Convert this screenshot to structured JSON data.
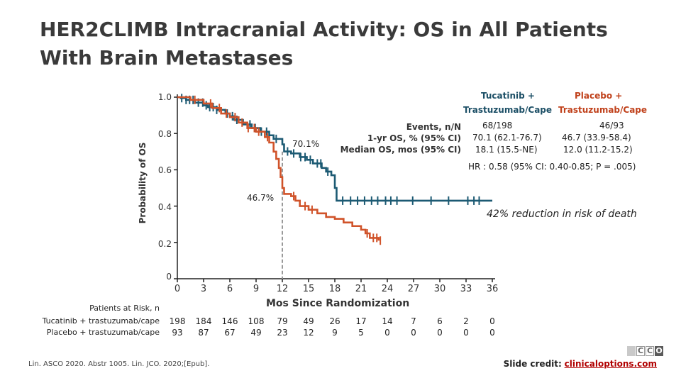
{
  "title": "HER2CLIMB Intracranial Activity: OS in All Patients With Brain Metastases",
  "chart_data": {
    "type": "line",
    "ylabel": "Probability of OS",
    "xlabel": "Mos Since Randomization",
    "xlim": [
      0,
      36
    ],
    "ylim": [
      0,
      1.0
    ],
    "x_ticks": [
      0,
      3,
      6,
      9,
      12,
      15,
      18,
      21,
      24,
      27,
      30,
      33,
      36
    ],
    "y_ticks": [
      0,
      0.2,
      0.4,
      0.6,
      0.8,
      1.0
    ],
    "y_tick_labels": [
      "0",
      "0.2",
      "0.4",
      "0.6",
      "0.8",
      "1.0"
    ],
    "series": [
      {
        "name": "Tucatinib + Trastuzumab/Cape",
        "color": "#1c5a73",
        "points": [
          [
            0,
            1.0
          ],
          [
            0.4,
            0.995
          ],
          [
            1.0,
            0.985
          ],
          [
            2.0,
            0.97
          ],
          [
            3.0,
            0.955
          ],
          [
            3.5,
            0.945
          ],
          [
            4.5,
            0.93
          ],
          [
            5.5,
            0.91
          ],
          [
            6.0,
            0.895
          ],
          [
            6.5,
            0.875
          ],
          [
            7.5,
            0.85
          ],
          [
            8.5,
            0.83
          ],
          [
            9.5,
            0.81
          ],
          [
            10.5,
            0.79
          ],
          [
            11.0,
            0.77
          ],
          [
            12.0,
            0.74
          ],
          [
            12.2,
            0.701
          ],
          [
            13.0,
            0.69
          ],
          [
            14.0,
            0.67
          ],
          [
            14.8,
            0.655
          ],
          [
            15.5,
            0.635
          ],
          [
            16.5,
            0.61
          ],
          [
            17.0,
            0.59
          ],
          [
            17.6,
            0.57
          ],
          [
            18.0,
            0.5
          ],
          [
            18.2,
            0.43
          ],
          [
            36.0,
            0.43
          ]
        ],
        "censor_x": [
          0.5,
          1.0,
          1.4,
          1.8,
          2.4,
          2.9,
          3.3,
          3.7,
          4.1,
          4.5,
          5.7,
          6.3,
          6.8,
          8.3,
          8.9,
          9.6,
          10.2,
          11.3,
          12.6,
          13.3,
          14.1,
          14.6,
          15.2,
          16.0,
          16.4,
          17.2,
          18.9,
          19.8,
          20.6,
          21.4,
          22.2,
          22.9,
          23.8,
          24.4,
          25.1,
          26.9,
          29.0,
          31.0,
          33.2,
          33.9,
          34.5
        ]
      },
      {
        "name": "Placebo + Trastuzumab/Cape",
        "color": "#d0532a",
        "points": [
          [
            0,
            1.0
          ],
          [
            1.5,
            0.985
          ],
          [
            3.0,
            0.965
          ],
          [
            4.0,
            0.94
          ],
          [
            5.0,
            0.91
          ],
          [
            6.0,
            0.89
          ],
          [
            7.0,
            0.86
          ],
          [
            8.0,
            0.83
          ],
          [
            9.0,
            0.81
          ],
          [
            10.0,
            0.78
          ],
          [
            10.5,
            0.75
          ],
          [
            11.0,
            0.7
          ],
          [
            11.3,
            0.66
          ],
          [
            11.6,
            0.61
          ],
          [
            11.8,
            0.56
          ],
          [
            12.0,
            0.5
          ],
          [
            12.2,
            0.467
          ],
          [
            13.0,
            0.455
          ],
          [
            13.5,
            0.43
          ],
          [
            14.0,
            0.4
          ],
          [
            15.0,
            0.38
          ],
          [
            16.0,
            0.36
          ],
          [
            17.0,
            0.34
          ],
          [
            18.0,
            0.33
          ],
          [
            19.0,
            0.31
          ],
          [
            20.0,
            0.29
          ],
          [
            21.0,
            0.27
          ],
          [
            21.5,
            0.25
          ],
          [
            22.0,
            0.225
          ],
          [
            23.0,
            0.21
          ]
        ],
        "censor_x": [
          2.0,
          3.8,
          4.8,
          5.6,
          6.6,
          7.4,
          8.1,
          8.8,
          9.3,
          10.3,
          13.3,
          14.6,
          15.4,
          21.7,
          22.4,
          22.8,
          23.2
        ]
      }
    ],
    "annotations": [
      {
        "text": "70.1%",
        "x": 12.2,
        "y": 0.701
      },
      {
        "text": "46.7%",
        "x": 12.2,
        "y": 0.467
      }
    ],
    "reference_line": {
      "x": 12,
      "style": "dashed"
    }
  },
  "legend": {
    "tuc_head": "Tucatinib +",
    "tuc_sub": "Trastuzumab/Cape",
    "pla_head": "Placebo +",
    "pla_sub": "Trastuzumab/Cape"
  },
  "stats": {
    "events_label": "Events, n/N",
    "oneyr_label": "1-yr OS, % (95% CI)",
    "median_label": "Median OS, mos (95% CI)",
    "tuc_events": "68/198",
    "pla_events": "46/93",
    "tuc_oneyr": "70.1 (62.1-76.7)",
    "pla_oneyr": "46.7 (33.9-58.4)",
    "tuc_median": "18.1 (15.5-NE)",
    "pla_median": "12.0 (11.2-15.2)",
    "hr": "HR : 0.58 (95% CI: 0.40-0.85; P = .005)"
  },
  "reduction_text": "42% reduction in risk of death",
  "risk_table": {
    "title": "Patients at Risk, n",
    "tuc_label": "Tucatinib + trastuzumab/cape",
    "pla_label": "Placebo + trastuzumab/cape",
    "tuc_values": [
      "198",
      "184",
      "146",
      "108",
      "79",
      "49",
      "26",
      "17",
      "14",
      "7",
      "6",
      "2",
      "0"
    ],
    "pla_values": [
      "93",
      "87",
      "67",
      "49",
      "23",
      "12",
      "9",
      "5",
      "0",
      "0",
      "0",
      "0",
      "0"
    ]
  },
  "citation": "Lin. ASCO 2020. Abstr 1005. Lin. JCO. 2020;[Epub].",
  "credit": {
    "label": "Slide credit:",
    "link": "clinicaloptions.com"
  },
  "logo_letters": [
    "C",
    "C",
    "O"
  ]
}
